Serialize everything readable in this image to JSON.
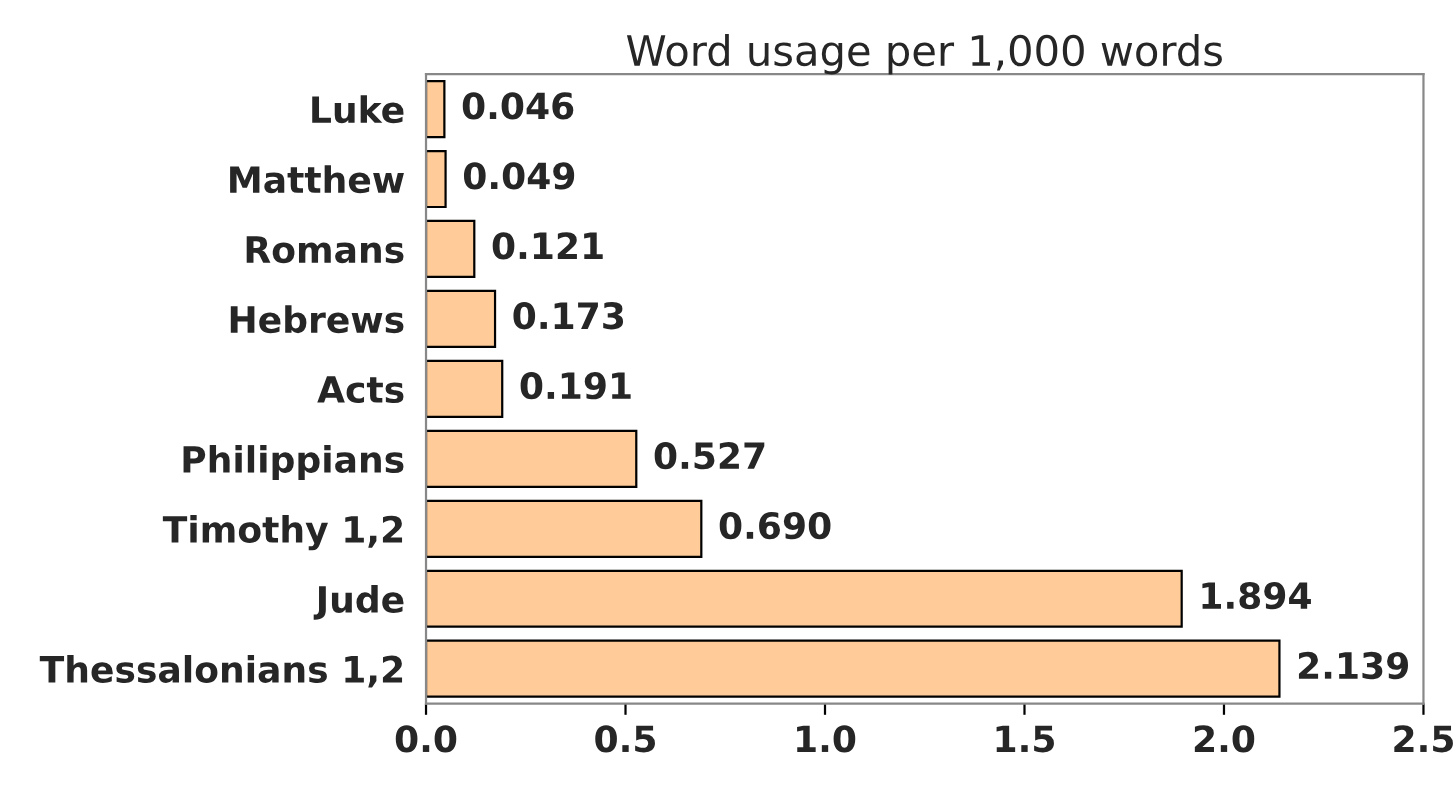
{
  "chart_data": {
    "type": "bar",
    "orientation": "horizontal",
    "title": "Word usage per 1,000 words",
    "categories": [
      "Luke",
      "Matthew",
      "Romans",
      "Hebrews",
      "Acts",
      "Philippians",
      "Timothy 1,2",
      "Jude",
      "Thessalonians 1,2"
    ],
    "values": [
      0.046,
      0.049,
      0.121,
      0.173,
      0.191,
      0.527,
      0.69,
      1.894,
      2.139
    ],
    "value_labels": [
      "0.046",
      "0.049",
      "0.121",
      "0.173",
      "0.191",
      "0.527",
      "0.690",
      "1.894",
      "2.139"
    ],
    "color": "#ffcc99",
    "xlim": [
      0,
      2.5
    ],
    "xticks": [
      {
        "value": 0,
        "label": "0.0"
      },
      {
        "value": 0.5,
        "label": "0.5"
      },
      {
        "value": 1,
        "label": "1.0"
      },
      {
        "value": 1.5,
        "label": "1.5"
      },
      {
        "value": 2,
        "label": "2.0"
      },
      {
        "value": 2.5,
        "label": "2.5"
      }
    ],
    "grid": false,
    "legend": false
  }
}
